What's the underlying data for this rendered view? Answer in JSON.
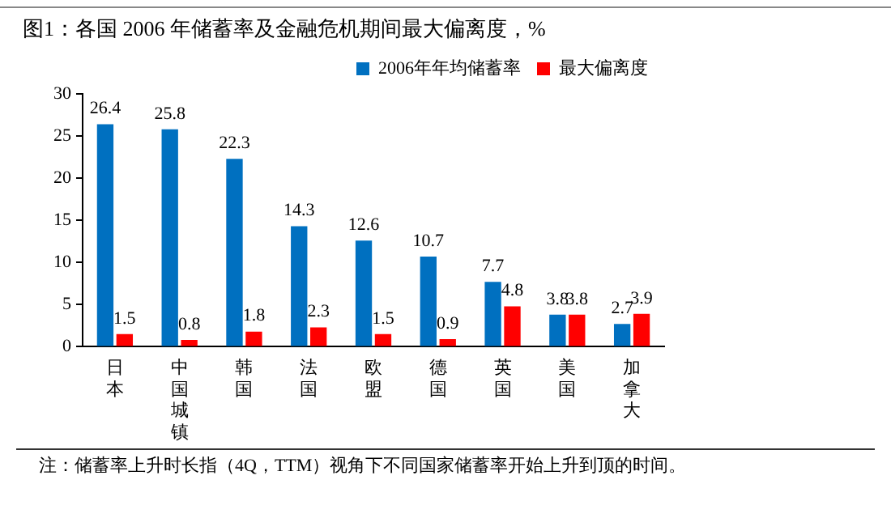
{
  "chart_data": {
    "type": "bar",
    "title": "图1：各国 2006 年储蓄率及金融危机期间最大偏离度，%",
    "categories": [
      "日本",
      "中国城镇",
      "韩国",
      "法国",
      "欧盟",
      "德国",
      "英国",
      "美国",
      "加拿大"
    ],
    "series": [
      {
        "name": "2006年年均储蓄率",
        "color": "#0070c0",
        "values": [
          26.4,
          25.8,
          22.3,
          14.3,
          12.6,
          10.7,
          7.7,
          3.8,
          2.7
        ]
      },
      {
        "name": "最大偏离度",
        "color": "#ff0000",
        "values": [
          1.5,
          0.8,
          1.8,
          2.3,
          1.5,
          0.9,
          4.8,
          3.8,
          3.9
        ]
      }
    ],
    "ylim": [
      0,
      30
    ],
    "yticks": [
      0,
      5,
      10,
      15,
      20,
      25,
      30
    ],
    "grid": false,
    "legend": "top right",
    "data_labels": true,
    "annotations": [
      "注：储蓄率上升时长指（4Q，TTM）视角下不同国家储蓄率开始上升到顶的时间。"
    ]
  }
}
